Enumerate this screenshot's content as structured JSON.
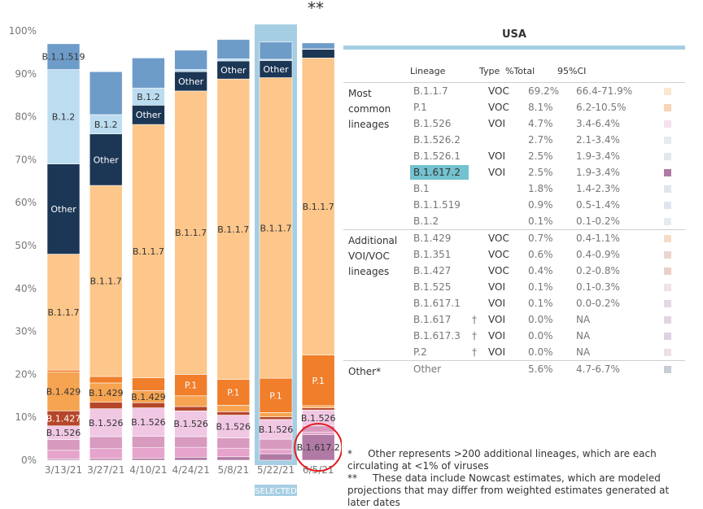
{
  "chart_data": {
    "type": "bar",
    "stacked": true,
    "categories": [
      "3/13/21",
      "3/27/21",
      "4/10/21",
      "4/24/21",
      "5/8/21",
      "5/22/21",
      "6/5/21"
    ],
    "ylim": [
      0,
      100
    ],
    "yticks": [
      "0%",
      "10%",
      "20%",
      "30%",
      "40%",
      "50%",
      "60%",
      "70%",
      "80%",
      "90%",
      "100%"
    ],
    "selected_category": "5/22/21",
    "selected_label": "SELECTED",
    "nowcast_marker": "**",
    "colors": {
      "B.1.1.7": "#fdc68a",
      "P.1": "#f07e2a",
      "B.1.526": "#f1c8e4",
      "B.1.617.2": "#b07aa4",
      "B.1.429": "#f6a451",
      "B.1.427": "#b5462a",
      "Other": "#1c3655",
      "B.1.2": "#bcdcf0",
      "B.1.1.519": "#6e9cc9",
      "B.1.526.1": "#e6a3cb",
      "B.1.526.2": "#d89abf",
      "minor": "#e0a8c8",
      "blue_light": "#a6cee3",
      "blue_mid": "#8fb6d9",
      "blue_dark": "#5b87b8",
      "orange_dark": "#c15a1f",
      "pink_light": "#f4d7ea",
      "highlight": "#a6cee3",
      "circle": "#e41a1c"
    },
    "series": [
      {
        "name": "B.1.617.2",
        "values": [
          0.3,
          0.4,
          0.5,
          0.7,
          0.8,
          1.5,
          6.0
        ]
      },
      {
        "name": "B.1.526.1",
        "values": [
          2.0,
          2.3,
          2.4,
          2.3,
          2.0,
          1.0,
          0.5
        ]
      },
      {
        "name": "B.1.526.2",
        "values": [
          2.5,
          2.8,
          2.7,
          2.5,
          2.4,
          2.4,
          1.5
        ]
      },
      {
        "name": "B.1.526",
        "values": [
          3.2,
          6.5,
          6.6,
          6.0,
          5.3,
          4.6,
          3.7
        ]
      },
      {
        "name": "B.1.427",
        "values": [
          3.5,
          1.5,
          1.2,
          1.0,
          0.8,
          0.6,
          0.5
        ]
      },
      {
        "name": "B.1.429",
        "values": [
          9.0,
          4.5,
          2.8,
          2.5,
          1.5,
          1.0,
          0.5
        ]
      },
      {
        "name": "P.1",
        "values": [
          0.5,
          1.5,
          3.0,
          5.0,
          6.0,
          8.0,
          11.8
        ]
      },
      {
        "name": "B.1.1.7",
        "values": [
          27.0,
          44.5,
          59.0,
          66.0,
          70.0,
          70.0,
          69.2
        ]
      },
      {
        "name": "Other",
        "values": [
          21.0,
          12.0,
          4.5,
          4.5,
          4.2,
          4.0,
          2.0
        ]
      },
      {
        "name": "B.1.2",
        "values": [
          22.0,
          4.5,
          4.0,
          0.5,
          0.5,
          0.3,
          0.1
        ]
      },
      {
        "name": "B.1.1.519",
        "values": [
          6.0,
          10.0,
          7.0,
          4.5,
          4.5,
          4.0,
          1.4
        ]
      }
    ],
    "bar_labels": [
      {
        "category": "3/13/21",
        "series": "B.1.526",
        "text": "B.1.526"
      },
      {
        "category": "3/13/21",
        "series": "B.1.427",
        "text": "B.1.427"
      },
      {
        "category": "3/13/21",
        "series": "B.1.429",
        "text": "B.1.429"
      },
      {
        "category": "3/13/21",
        "series": "B.1.1.7",
        "text": "B.1.1.7"
      },
      {
        "category": "3/13/21",
        "series": "Other",
        "text": "Other"
      },
      {
        "category": "3/13/21",
        "series": "B.1.2",
        "text": "B.1.2"
      },
      {
        "category": "3/13/21",
        "series": "B.1.1.519",
        "text": "B.1.1.519"
      },
      {
        "category": "3/27/21",
        "series": "B.1.526",
        "text": "B.1.526"
      },
      {
        "category": "3/27/21",
        "series": "B.1.429",
        "text": "B.1.429"
      },
      {
        "category": "3/27/21",
        "series": "B.1.1.7",
        "text": "B.1.1.7"
      },
      {
        "category": "3/27/21",
        "series": "Other",
        "text": "Other"
      },
      {
        "category": "3/27/21",
        "series": "B.1.2",
        "text": "B.1.2"
      },
      {
        "category": "4/10/21",
        "series": "B.1.526",
        "text": "B.1.526"
      },
      {
        "category": "4/10/21",
        "series": "B.1.429",
        "text": "B.1.429"
      },
      {
        "category": "4/10/21",
        "series": "B.1.1.7",
        "text": "B.1.1.7"
      },
      {
        "category": "4/10/21",
        "series": "Other",
        "text": "Other"
      },
      {
        "category": "4/10/21",
        "series": "B.1.2",
        "text": "B.1.2"
      },
      {
        "category": "4/24/21",
        "series": "B.1.526",
        "text": "B.1.526"
      },
      {
        "category": "4/24/21",
        "series": "P.1",
        "text": "P.1"
      },
      {
        "category": "4/24/21",
        "series": "B.1.1.7",
        "text": "B.1.1.7"
      },
      {
        "category": "4/24/21",
        "series": "Other",
        "text": "Other"
      },
      {
        "category": "5/8/21",
        "series": "B.1.526",
        "text": "B.1.526"
      },
      {
        "category": "5/8/21",
        "series": "P.1",
        "text": "P.1"
      },
      {
        "category": "5/8/21",
        "series": "B.1.1.7",
        "text": "B.1.1.7"
      },
      {
        "category": "5/8/21",
        "series": "Other",
        "text": "Other"
      },
      {
        "category": "5/22/21",
        "series": "B.1.526",
        "text": "B.1.526"
      },
      {
        "category": "5/22/21",
        "series": "P.1",
        "text": "P.1"
      },
      {
        "category": "5/22/21",
        "series": "B.1.1.7",
        "text": "B.1.1.7"
      },
      {
        "category": "5/22/21",
        "series": "Other",
        "text": "Other"
      },
      {
        "category": "6/5/21",
        "series": "B.1.617.2",
        "text": "B.1.617.2"
      },
      {
        "category": "6/5/21",
        "series": "B.1.526",
        "text": "B.1.526"
      },
      {
        "category": "6/5/21",
        "series": "P.1",
        "text": "P.1"
      },
      {
        "category": "6/5/21",
        "series": "B.1.1.7",
        "text": "B.1.1.7"
      }
    ],
    "circled": {
      "category": "6/5/21",
      "series": "B.1.617.2"
    }
  },
  "table": {
    "title": "USA",
    "headers": {
      "lineage": "Lineage",
      "type": "Type",
      "total": "%Total",
      "ci": "95%CI"
    },
    "groups": [
      {
        "label": "Most common lineages",
        "rows": [
          {
            "lineage": "B.1.1.7",
            "dagger": "",
            "type": "VOC",
            "total": "69.2%",
            "ci": "66.4-71.9%",
            "color": "#fbe6cf"
          },
          {
            "lineage": "P.1",
            "dagger": "",
            "type": "VOC",
            "total": "8.1%",
            "ci": "6.2-10.5%",
            "color": "#f7d3b8"
          },
          {
            "lineage": "B.1.526",
            "dagger": "",
            "type": "VOI",
            "total": "4.7%",
            "ci": "3.4-6.4%",
            "color": "#f6e1ec"
          },
          {
            "lineage": "B.1.526.2",
            "dagger": "",
            "type": "",
            "total": "2.7%",
            "ci": "2.1-3.4%",
            "color": "#e6e9ef"
          },
          {
            "lineage": "B.1.526.1",
            "dagger": "",
            "type": "VOI",
            "total": "2.5%",
            "ci": "1.9-3.4%",
            "color": "#e3e7ec"
          },
          {
            "lineage": "B.1.617.2",
            "dagger": "",
            "type": "VOI",
            "total": "2.5%",
            "ci": "1.9-3.4%",
            "color": "#b07aa4",
            "highlight": true
          },
          {
            "lineage": "B.1",
            "dagger": "",
            "type": "",
            "total": "1.8%",
            "ci": "1.4-2.3%",
            "color": "#dfe6ee"
          },
          {
            "lineage": "B.1.1.519",
            "dagger": "",
            "type": "",
            "total": "0.9%",
            "ci": "0.5-1.4%",
            "color": "#dde6ef"
          },
          {
            "lineage": "B.1.2",
            "dagger": "",
            "type": "",
            "total": "0.1%",
            "ci": "0.1-0.2%",
            "color": "#e4ebf1"
          }
        ]
      },
      {
        "label": "Additional VOI/VOC lineages",
        "rows": [
          {
            "lineage": "B.1.429",
            "dagger": "",
            "type": "VOC",
            "total": "0.7%",
            "ci": "0.4-1.1%",
            "color": "#f5dcc6"
          },
          {
            "lineage": "B.1.351",
            "dagger": "",
            "type": "VOC",
            "total": "0.6%",
            "ci": "0.4-0.9%",
            "color": "#ecd5cf"
          },
          {
            "lineage": "B.1.427",
            "dagger": "",
            "type": "VOC",
            "total": "0.4%",
            "ci": "0.2-0.8%",
            "color": "#ead0c6"
          },
          {
            "lineage": "B.1.525",
            "dagger": "",
            "type": "VOI",
            "total": "0.1%",
            "ci": "0.1-0.3%",
            "color": "#f0e2e8"
          },
          {
            "lineage": "B.1.617.1",
            "dagger": "",
            "type": "VOI",
            "total": "0.1%",
            "ci": "0.0-0.2%",
            "color": "#e2d9e3"
          },
          {
            "lineage": "B.1.617",
            "dagger": "†",
            "type": "VOI",
            "total": "0.0%",
            "ci": "NA",
            "color": "#e0d6e0"
          },
          {
            "lineage": "B.1.617.3",
            "dagger": "†",
            "type": "VOI",
            "total": "0.0%",
            "ci": "NA",
            "color": "#ddd2df"
          },
          {
            "lineage": "P.2",
            "dagger": "†",
            "type": "VOI",
            "total": "0.0%",
            "ci": "NA",
            "color": "#efe1e3"
          }
        ]
      },
      {
        "label": "Other*",
        "rows": [
          {
            "lineage": "Other",
            "dagger": "",
            "type": "",
            "total": "5.6%",
            "ci": "4.7-6.7%",
            "color": "#c7cdd4"
          }
        ]
      }
    ]
  },
  "footnotes": [
    {
      "mark": "*",
      "text": "Other represents >200 additional lineages, which are each circulating at <1% of viruses"
    },
    {
      "mark": "**",
      "text": "These data include Nowcast estimates, which are modeled projections that may differ from weighted estimates generated at later dates"
    }
  ]
}
